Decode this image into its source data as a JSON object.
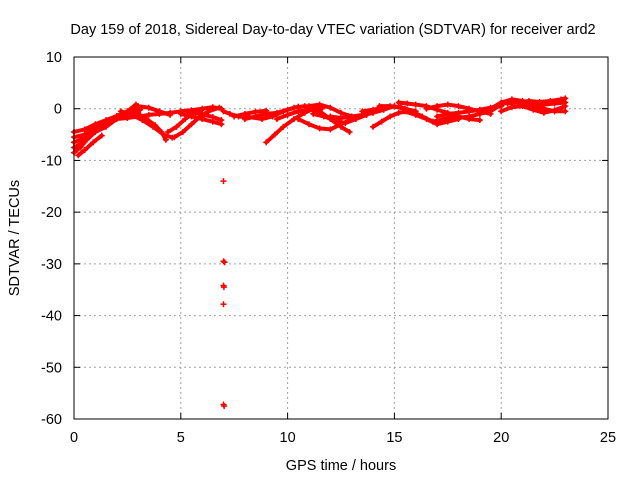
{
  "chart_data": {
    "type": "scatter",
    "title": "Day 159 of 2018, Sidereal Day-to-day VTEC variation (SDTVAR) for receiver ard2",
    "xlabel": "GPS time / hours",
    "ylabel": "SDTVAR / TECUs",
    "xlim": [
      0,
      25
    ],
    "ylim": [
      -60,
      10
    ],
    "xticks": [
      0,
      5,
      10,
      15,
      20,
      25
    ],
    "yticks": [
      10,
      0,
      -10,
      -20,
      -30,
      -40,
      -50,
      -60
    ],
    "grid": true,
    "marker": "plus",
    "color": "#ff0000",
    "series": [
      {
        "name": "SDTVAR",
        "tracks": [
          [
            [
              0.0,
              -8.5
            ],
            [
              0.3,
              -7.5
            ],
            [
              0.6,
              -6.0
            ],
            [
              1.0,
              -4.5
            ],
            [
              1.5,
              -3.5
            ],
            [
              2.0,
              -2.0
            ],
            [
              2.5,
              -0.5
            ],
            [
              3.0,
              0.5
            ],
            [
              3.5,
              0.2
            ],
            [
              4.0,
              -0.5
            ],
            [
              4.5,
              -1.2
            ]
          ],
          [
            [
              0.0,
              -6.5
            ],
            [
              0.4,
              -5.8
            ],
            [
              0.8,
              -4.8
            ],
            [
              1.2,
              -3.8
            ],
            [
              1.6,
              -2.8
            ],
            [
              2.0,
              -1.8
            ],
            [
              2.5,
              -1.0
            ],
            [
              3.0,
              -0.8
            ]
          ],
          [
            [
              0.0,
              -5.5
            ],
            [
              0.5,
              -5.0
            ],
            [
              1.0,
              -3.5
            ],
            [
              1.5,
              -2.5
            ],
            [
              2.0,
              -1.5
            ],
            [
              2.6,
              -0.8
            ],
            [
              3.1,
              -0.2
            ]
          ],
          [
            [
              0.0,
              -4.5
            ],
            [
              0.5,
              -4.0
            ],
            [
              1.0,
              -3.0
            ],
            [
              1.5,
              -2.2
            ],
            [
              2.0,
              -1.4
            ],
            [
              2.5,
              -0.5
            ],
            [
              2.9,
              0.8
            ]
          ],
          [
            [
              0.0,
              -7.5
            ],
            [
              0.3,
              -6.8
            ],
            [
              0.7,
              -5.5
            ],
            [
              1.1,
              -4.0
            ]
          ],
          [
            [
              0.2,
              -9.0
            ],
            [
              0.5,
              -8.0
            ],
            [
              0.9,
              -6.5
            ],
            [
              1.3,
              -5.2
            ]
          ],
          [
            [
              1.5,
              -2.5
            ],
            [
              2.0,
              -2.0
            ],
            [
              2.5,
              -1.8
            ],
            [
              3.0,
              -1.5
            ],
            [
              3.5,
              -1.2
            ],
            [
              4.0,
              -1.0
            ],
            [
              4.5,
              -0.8
            ],
            [
              5.0,
              -0.5
            ],
            [
              5.5,
              -0.3
            ],
            [
              6.0,
              0.0
            ],
            [
              6.5,
              0.3
            ],
            [
              6.9,
              0.0
            ]
          ],
          [
            [
              2.2,
              -0.5
            ],
            [
              2.7,
              -1.2
            ],
            [
              3.2,
              -2.2
            ],
            [
              3.7,
              -3.5
            ],
            [
              4.2,
              -5.0
            ],
            [
              4.6,
              -5.6
            ]
          ],
          [
            [
              3.0,
              -1.0
            ],
            [
              3.4,
              -2.0
            ],
            [
              3.8,
              -3.2
            ],
            [
              4.1,
              -4.5
            ],
            [
              4.3,
              -6.0
            ]
          ],
          [
            [
              4.4,
              -4.5
            ],
            [
              4.8,
              -3.5
            ],
            [
              5.2,
              -2.0
            ],
            [
              5.6,
              -0.8
            ],
            [
              6.0,
              -0.2
            ]
          ],
          [
            [
              4.7,
              -5.5
            ],
            [
              5.1,
              -4.5
            ],
            [
              5.5,
              -3.0
            ],
            [
              5.9,
              -1.5
            ],
            [
              6.3,
              -0.5
            ],
            [
              6.8,
              0.2
            ]
          ],
          [
            [
              5.0,
              -1.0
            ],
            [
              5.5,
              -1.5
            ],
            [
              6.0,
              -2.0
            ],
            [
              6.5,
              -2.5
            ],
            [
              6.9,
              -3.0
            ]
          ],
          [
            [
              5.3,
              -0.5
            ],
            [
              5.7,
              -0.8
            ],
            [
              6.1,
              -1.2
            ],
            [
              6.5,
              -1.6
            ],
            [
              6.9,
              -2.2
            ]
          ],
          [
            [
              7.0,
              -0.5
            ],
            [
              7.3,
              -1.0
            ],
            [
              7.7,
              -1.5
            ],
            [
              8.2,
              -1.6
            ],
            [
              8.8,
              -2.0
            ],
            [
              9.3,
              -1.5
            ],
            [
              9.8,
              -0.5
            ],
            [
              10.3,
              0.2
            ],
            [
              10.8,
              0.5
            ],
            [
              11.3,
              0.3
            ],
            [
              11.6,
              0.0
            ]
          ],
          [
            [
              8.0,
              -2.0
            ],
            [
              8.5,
              -1.5
            ],
            [
              9.0,
              -1.0
            ],
            [
              9.5,
              -0.8
            ],
            [
              10.0,
              -0.2
            ],
            [
              10.5,
              0.4
            ]
          ],
          [
            [
              7.5,
              -1.5
            ],
            [
              8.0,
              -1.0
            ],
            [
              8.5,
              -0.6
            ],
            [
              9.0,
              -0.4
            ]
          ],
          [
            [
              9.0,
              -6.5
            ],
            [
              9.4,
              -5.0
            ],
            [
              9.8,
              -3.5
            ],
            [
              10.3,
              -2.0
            ],
            [
              10.8,
              -0.8
            ],
            [
              11.2,
              0.0
            ]
          ],
          [
            [
              9.5,
              -2.0
            ],
            [
              10.0,
              -1.2
            ],
            [
              10.5,
              -0.5
            ],
            [
              11.0,
              -0.2
            ],
            [
              11.5,
              -0.5
            ],
            [
              12.0,
              -2.0
            ],
            [
              12.5,
              -3.5
            ],
            [
              12.9,
              -4.5
            ]
          ],
          [
            [
              10.5,
              -2.0
            ],
            [
              11.0,
              -3.0
            ],
            [
              11.5,
              -3.8
            ],
            [
              12.0,
              -4.0
            ],
            [
              12.5,
              -3.0
            ],
            [
              13.0,
              -2.0
            ]
          ],
          [
            [
              11.0,
              0.5
            ],
            [
              11.5,
              0.8
            ],
            [
              12.0,
              0.2
            ],
            [
              12.5,
              -0.8
            ],
            [
              13.0,
              -1.5
            ]
          ],
          [
            [
              11.2,
              -1.0
            ],
            [
              11.7,
              -1.5
            ],
            [
              12.2,
              -2.2
            ],
            [
              12.7,
              -2.8
            ],
            [
              13.2,
              -2.0
            ],
            [
              13.7,
              -1.2
            ]
          ],
          [
            [
              12.0,
              -1.5
            ],
            [
              12.5,
              -1.8
            ],
            [
              13.0,
              -1.5
            ],
            [
              13.5,
              -1.2
            ],
            [
              14.0,
              -0.8
            ],
            [
              14.5,
              -0.2
            ],
            [
              15.0,
              0.5
            ]
          ],
          [
            [
              13.5,
              -0.5
            ],
            [
              14.0,
              -0.2
            ],
            [
              14.5,
              0.2
            ],
            [
              15.0,
              0.4
            ],
            [
              15.5,
              0.0
            ],
            [
              16.0,
              -0.5
            ]
          ],
          [
            [
              14.0,
              -3.5
            ],
            [
              14.4,
              -2.5
            ],
            [
              14.8,
              -1.5
            ],
            [
              15.2,
              -0.8
            ],
            [
              15.6,
              -0.5
            ]
          ],
          [
            [
              14.3,
              0.5
            ],
            [
              14.8,
              0.5
            ],
            [
              15.3,
              0.3
            ],
            [
              15.8,
              -0.5
            ],
            [
              16.3,
              -1.5
            ],
            [
              16.8,
              -2.5
            ],
            [
              17.3,
              -2.0
            ],
            [
              17.8,
              -1.5
            ]
          ],
          [
            [
              15.2,
              1.2
            ],
            [
              15.6,
              1.0
            ],
            [
              16.0,
              0.8
            ],
            [
              16.5,
              0.5
            ],
            [
              17.0,
              -0.2
            ],
            [
              17.5,
              -0.8
            ],
            [
              18.0,
              -1.5
            ],
            [
              18.5,
              -2.0
            ],
            [
              19.0,
              -2.2
            ]
          ],
          [
            [
              15.5,
              -0.5
            ],
            [
              16.0,
              -1.2
            ],
            [
              16.5,
              -2.0
            ],
            [
              17.0,
              -3.0
            ],
            [
              17.5,
              -2.5
            ],
            [
              18.0,
              -2.0
            ]
          ],
          [
            [
              16.5,
              0.0
            ],
            [
              17.0,
              0.5
            ],
            [
              17.5,
              0.8
            ],
            [
              18.0,
              0.5
            ],
            [
              18.5,
              0.0
            ],
            [
              19.0,
              -0.5
            ],
            [
              19.5,
              -1.0
            ]
          ],
          [
            [
              17.0,
              -1.5
            ],
            [
              17.5,
              -1.0
            ],
            [
              18.0,
              -0.8
            ],
            [
              18.5,
              -0.5
            ],
            [
              19.0,
              -0.2
            ],
            [
              19.5,
              0.2
            ],
            [
              20.0,
              0.5
            ]
          ],
          [
            [
              18.0,
              -1.8
            ],
            [
              18.5,
              -1.5
            ],
            [
              19.0,
              -1.0
            ],
            [
              19.5,
              -0.5
            ],
            [
              20.0,
              0.8
            ],
            [
              20.5,
              1.5
            ],
            [
              21.0,
              1.0
            ],
            [
              21.5,
              0.5
            ],
            [
              22.0,
              0.0
            ],
            [
              22.5,
              -0.5
            ],
            [
              23.0,
              -0.5
            ]
          ],
          [
            [
              19.0,
              -0.5
            ],
            [
              19.5,
              0.0
            ],
            [
              20.0,
              1.2
            ],
            [
              20.5,
              1.8
            ],
            [
              21.0,
              1.5
            ],
            [
              21.5,
              1.0
            ],
            [
              22.0,
              0.8
            ],
            [
              22.5,
              1.0
            ],
            [
              23.0,
              1.2
            ]
          ],
          [
            [
              20.0,
              -0.5
            ],
            [
              20.5,
              0.3
            ],
            [
              21.0,
              0.5
            ],
            [
              21.5,
              -0.2
            ],
            [
              22.0,
              -0.8
            ],
            [
              22.5,
              -0.3
            ],
            [
              23.0,
              0.5
            ]
          ],
          [
            [
              20.3,
              1.0
            ],
            [
              20.8,
              1.2
            ],
            [
              21.3,
              1.5
            ],
            [
              21.8,
              1.3
            ],
            [
              22.3,
              1.5
            ],
            [
              22.8,
              1.8
            ],
            [
              23.0,
              2.0
            ]
          ]
        ],
        "points": [
          [
            7.0,
            -14.0
          ],
          [
            7.0,
            -29.5
          ],
          [
            7.05,
            -29.7
          ],
          [
            7.0,
            -34.2
          ],
          [
            7.02,
            -34.5
          ],
          [
            7.0,
            -37.8
          ],
          [
            7.0,
            -57.2
          ],
          [
            7.03,
            -57.5
          ]
        ]
      }
    ]
  }
}
